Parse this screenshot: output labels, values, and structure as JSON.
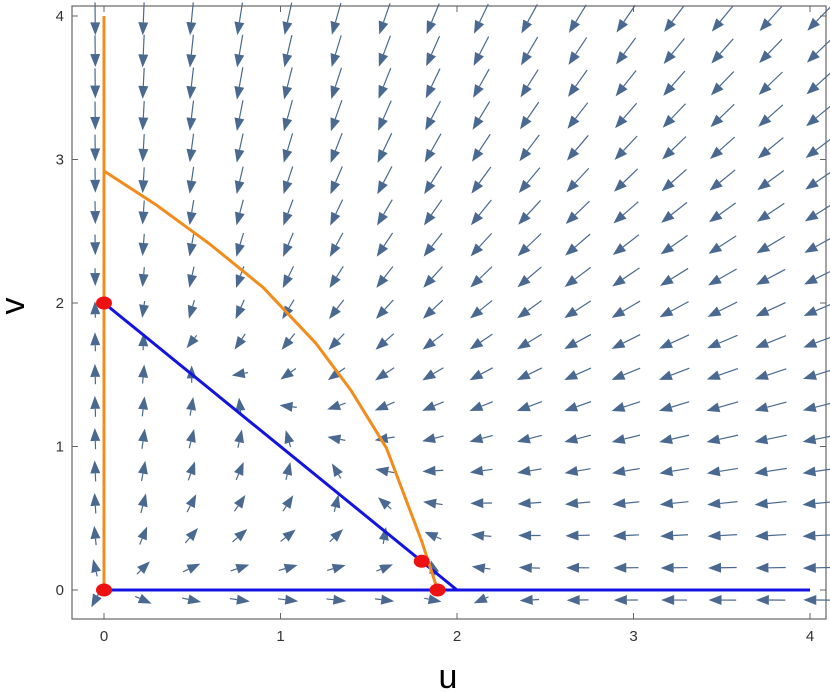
{
  "chart_data": {
    "type": "vector-field",
    "title": "",
    "xlabel": "u",
    "ylabel": "v",
    "xlim": [
      -0.15,
      4.1
    ],
    "ylim": [
      -0.2,
      4.05
    ],
    "xticks": [
      "0",
      "1",
      "2",
      "3",
      "4"
    ],
    "yticks": [
      "0",
      "1",
      "2",
      "3",
      "4"
    ],
    "grid": false,
    "colors": {
      "arrows": "#4a6990",
      "nullcline_u": "#1414e0",
      "nullcline_v": "#f28c1c",
      "equilibria": "#ee1111",
      "frame": "#666666"
    },
    "series": [
      {
        "kind": "nullcline",
        "color_key": "nullcline_u",
        "segments": [
          {
            "x": [
              0,
              2
            ],
            "y": [
              2,
              0
            ]
          },
          {
            "x": [
              0,
              4
            ],
            "y": [
              0,
              0
            ]
          }
        ]
      },
      {
        "kind": "nullcline",
        "color_key": "nullcline_v",
        "segments": [
          {
            "x": [
              0,
              0.3,
              0.6,
              0.9,
              1.2,
              1.4,
              1.6,
              1.8,
              1.89
            ],
            "y": [
              2.92,
              2.68,
              2.41,
              2.11,
              1.72,
              1.39,
              0.99,
              0.34,
              0
            ]
          },
          {
            "x": [
              0,
              0
            ],
            "y": [
              0,
              4
            ]
          }
        ]
      }
    ],
    "equilibria": [
      {
        "x": 0,
        "y": 0
      },
      {
        "x": 0,
        "y": 2
      },
      {
        "x": 1.89,
        "y": 0
      },
      {
        "x": 1.8,
        "y": 0.2
      }
    ]
  }
}
